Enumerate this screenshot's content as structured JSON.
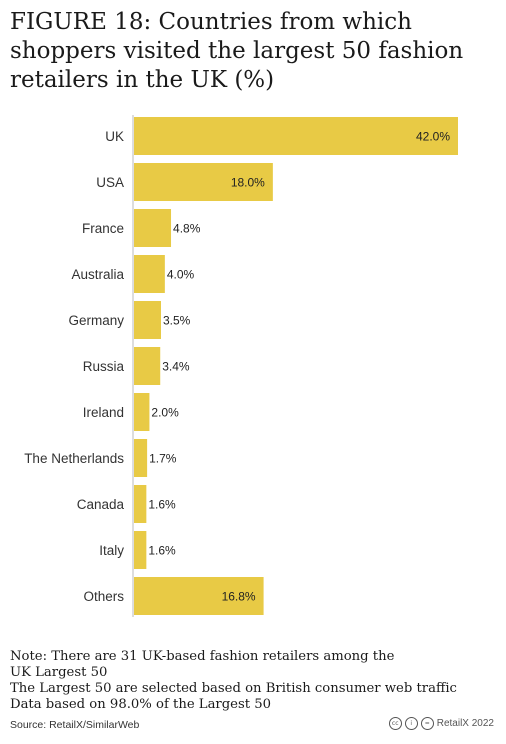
{
  "title": {
    "lines": [
      "FIGURE 18: Countries from which",
      "shoppers visited the largest 50 fashion",
      "retailers in the UK (%)"
    ]
  },
  "chart_data": {
    "type": "bar",
    "orientation": "horizontal",
    "categories": [
      "UK",
      "USA",
      "France",
      "Australia",
      "Germany",
      "Russia",
      "Ireland",
      "The Netherlands",
      "Canada",
      "Italy",
      "Others"
    ],
    "values": [
      42.0,
      18.0,
      4.8,
      4.0,
      3.5,
      3.4,
      2.0,
      1.7,
      1.6,
      1.6,
      16.8
    ],
    "value_labels": [
      "42.0%",
      "18.0%",
      "4.8%",
      "4.0%",
      "3.5%",
      "3.4%",
      "2.0%",
      "1.7%",
      "1.6%",
      "1.6%",
      "16.8%"
    ],
    "xlim": [
      0,
      42.0
    ],
    "grid": false,
    "bar_color": "#e8ca45",
    "axis_color": "#bbbbbb"
  },
  "notes": [
    "Note: There are 31 UK-based fashion retailers among the",
    "UK Largest 50",
    "The Largest 50 are selected based on British consumer web traffic",
    "Data based on 98.0% of the Largest 50"
  ],
  "footer": {
    "source": "Source: RetailX/SimilarWeb",
    "license_icons": [
      "cc-icon",
      "by-icon",
      "nd-icon"
    ],
    "credit": "RetailX 2022"
  }
}
